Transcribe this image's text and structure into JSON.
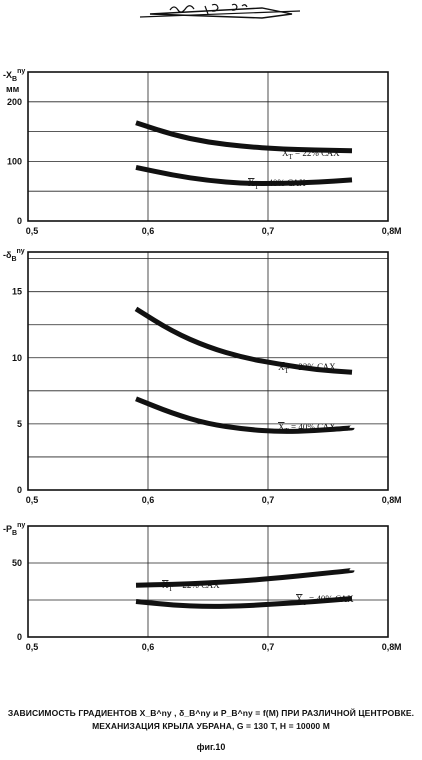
{
  "header_mark": "Иг 76-5",
  "caption": {
    "line1": "ЗАВИСИМОСТЬ ГРАДИЕНТОВ  X_B^ny ,  δ_B^ny  и  P_B^ny = f(M)  ПРИ РАЗЛИЧНОЙ ЦЕНТРОВКЕ.",
    "line2": "МЕХАНИЗАЦИЯ КРЫЛА УБРАНА, G = 130 Т, Н = 10000 М",
    "fig": "фиг.10"
  },
  "chart_data": [
    {
      "type": "line",
      "ylabel": "-X_B^ny",
      "yunit": "мм",
      "xlabel": "M",
      "xlim": [
        0.5,
        0.8
      ],
      "ylim": [
        0,
        250
      ],
      "xticks": [
        "0,5",
        "0,6",
        "0,7",
        "0,8"
      ],
      "yticks": [
        "0",
        "100",
        "200"
      ],
      "grid": true,
      "series": [
        {
          "name": "X_T = 22% САХ",
          "x": [
            0.59,
            0.62,
            0.65,
            0.68,
            0.71,
            0.74,
            0.77
          ],
          "y": [
            165,
            145,
            132,
            125,
            121,
            119,
            118
          ]
        },
        {
          "name": "X_T = 40% САХ",
          "x": [
            0.59,
            0.62,
            0.65,
            0.68,
            0.71,
            0.74,
            0.77
          ],
          "y": [
            90,
            77,
            68,
            63,
            63,
            65,
            69
          ]
        }
      ]
    },
    {
      "type": "line",
      "ylabel": "-δ_B^ny",
      "yunit": "",
      "xlabel": "M",
      "xlim": [
        0.5,
        0.8
      ],
      "ylim": [
        0,
        18
      ],
      "xticks": [
        "0,5",
        "0,6",
        "0,7",
        "0,8"
      ],
      "yticks": [
        "0",
        "5",
        "10",
        "15"
      ],
      "grid": true,
      "series": [
        {
          "name": "X_T = 22% САХ",
          "x": [
            0.59,
            0.62,
            0.65,
            0.68,
            0.71,
            0.74,
            0.77
          ],
          "y": [
            13.7,
            12.0,
            10.8,
            10.0,
            9.5,
            9.1,
            8.9
          ]
        },
        {
          "name": "X_T = 40% САХ",
          "x": [
            0.59,
            0.62,
            0.65,
            0.68,
            0.71,
            0.74,
            0.77
          ],
          "y": [
            6.9,
            5.8,
            5.0,
            4.6,
            4.4,
            4.5,
            4.7
          ]
        }
      ]
    },
    {
      "type": "line",
      "ylabel": "-P_B^ny",
      "yunit": "",
      "xlabel": "M",
      "xlim": [
        0.5,
        0.8
      ],
      "ylim": [
        0,
        75
      ],
      "xticks": [
        "0,5",
        "0,6",
        "0,7",
        "0,8"
      ],
      "yticks": [
        "0",
        "50"
      ],
      "grid": true,
      "series": [
        {
          "name": "X_T = 22% САХ",
          "x": [
            0.59,
            0.62,
            0.65,
            0.68,
            0.71,
            0.74,
            0.77
          ],
          "y": [
            35,
            35.5,
            36.5,
            38,
            40,
            42.5,
            45
          ]
        },
        {
          "name": "X_T = 40% САХ",
          "x": [
            0.59,
            0.62,
            0.65,
            0.68,
            0.71,
            0.74,
            0.77
          ],
          "y": [
            24,
            21.5,
            20.5,
            21,
            22.5,
            24,
            26
          ]
        }
      ]
    }
  ]
}
